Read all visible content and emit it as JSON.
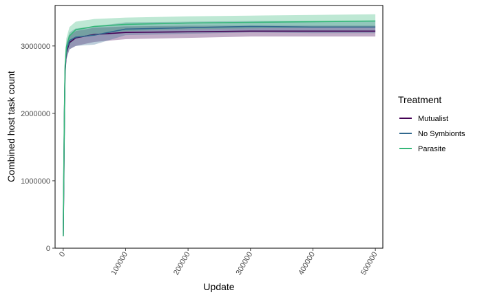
{
  "chart_data": {
    "type": "line",
    "title": "",
    "xlabel": "Update",
    "ylabel": "Combined host task count",
    "xlim": [
      -13000,
      512000
    ],
    "ylim": [
      0,
      3600000
    ],
    "x_ticks": [
      0,
      100000,
      200000,
      300000,
      400000,
      500000
    ],
    "x_tick_labels": [
      "0",
      "100000",
      "200000",
      "300000",
      "400000",
      "500000"
    ],
    "y_ticks": [
      0,
      1000000,
      2000000,
      3000000
    ],
    "y_tick_labels": [
      "0",
      "1000000",
      "2000000",
      "3000000"
    ],
    "grid": false,
    "legend": {
      "title": "Treatment",
      "position": "right"
    },
    "band": "shaded confidence interval around each series",
    "series": [
      {
        "name": "Mutualist",
        "color": "#440154",
        "x": [
          0,
          1000,
          2000,
          3000,
          5000,
          10000,
          20000,
          50000,
          100000,
          200000,
          300000,
          400000,
          500000
        ],
        "y": [
          180000,
          1000000,
          2000000,
          2600000,
          2900000,
          3050000,
          3120000,
          3170000,
          3200000,
          3210000,
          3220000,
          3220000,
          3220000
        ],
        "lower": [
          180000,
          950000,
          1900000,
          2500000,
          2800000,
          2950000,
          3000000,
          3060000,
          3100000,
          3120000,
          3140000,
          3140000,
          3140000
        ],
        "upper": [
          180000,
          1050000,
          2100000,
          2700000,
          3000000,
          3150000,
          3220000,
          3270000,
          3290000,
          3300000,
          3300000,
          3300000,
          3300000
        ]
      },
      {
        "name": "No Symbionts",
        "color": "#31688e",
        "x": [
          0,
          1000,
          2000,
          3000,
          5000,
          10000,
          20000,
          50000,
          100000,
          200000,
          300000,
          400000,
          500000
        ],
        "y": [
          180000,
          1100000,
          2000000,
          2650000,
          2920000,
          3080000,
          3130000,
          3160000,
          3250000,
          3270000,
          3290000,
          3280000,
          3280000
        ],
        "lower": [
          180000,
          1000000,
          1850000,
          2500000,
          2800000,
          2950000,
          3000000,
          3020000,
          3160000,
          3180000,
          3200000,
          3190000,
          3190000
        ],
        "upper": [
          180000,
          1200000,
          2150000,
          2800000,
          3040000,
          3200000,
          3260000,
          3290000,
          3350000,
          3360000,
          3370000,
          3370000,
          3370000
        ]
      },
      {
        "name": "Parasite",
        "color": "#35b779",
        "x": [
          0,
          1000,
          2000,
          3000,
          5000,
          10000,
          20000,
          50000,
          100000,
          200000,
          300000,
          400000,
          500000
        ],
        "y": [
          180000,
          1150000,
          2050000,
          2700000,
          2980000,
          3150000,
          3240000,
          3290000,
          3320000,
          3340000,
          3350000,
          3360000,
          3370000
        ],
        "lower": [
          180000,
          1050000,
          1900000,
          2550000,
          2850000,
          3020000,
          3120000,
          3180000,
          3220000,
          3250000,
          3260000,
          3270000,
          3280000
        ],
        "upper": [
          180000,
          1250000,
          2200000,
          2850000,
          3110000,
          3280000,
          3360000,
          3400000,
          3420000,
          3440000,
          3450000,
          3460000,
          3470000
        ]
      }
    ]
  }
}
